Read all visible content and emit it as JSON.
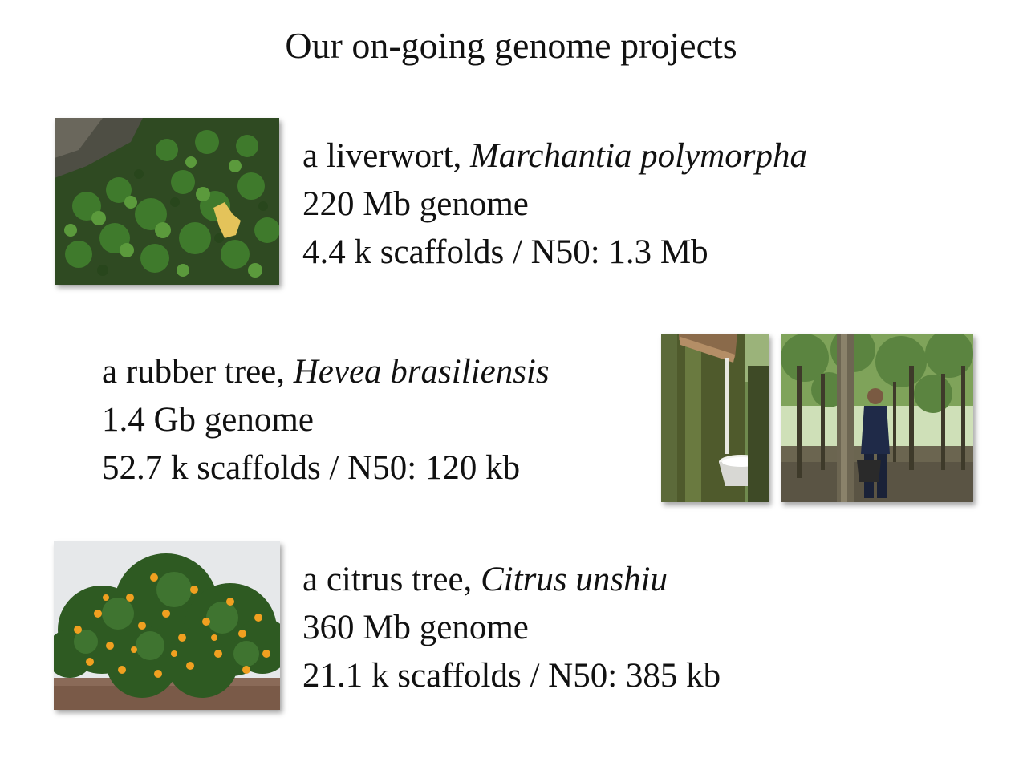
{
  "slide": {
    "title": "Our on-going genome projects"
  },
  "projects": [
    {
      "common": "a liverwort,",
      "species": "Marchantia polymorpha",
      "genome": "220 Mb genome",
      "assembly": "4.4 k scaffolds / N50: 1.3 Mb",
      "photos": [
        "liverwort-photo"
      ]
    },
    {
      "common": "a rubber tree,",
      "species": "Hevea brasiliensis",
      "genome": "1.4 Gb genome",
      "assembly": "52.7 k scaffolds / N50: 120 kb",
      "photos": [
        "latex-tapping-photo",
        "rubber-plantation-photo"
      ]
    },
    {
      "common": "a citrus tree,",
      "species": "Citrus unshiu",
      "genome": "360 Mb genome",
      "assembly": "21.1 k scaffolds / N50: 385 kb",
      "photos": [
        "citrus-tree-photo"
      ]
    }
  ]
}
